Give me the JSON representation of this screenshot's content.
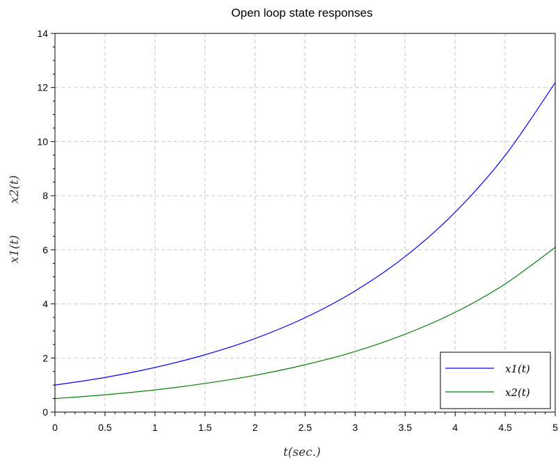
{
  "chart_data": {
    "type": "line",
    "title": "Open loop state responses",
    "xlabel": "t(sec.)",
    "ylabel_parts": [
      "x1(t)",
      "x2(t)"
    ],
    "xlim": [
      0,
      5
    ],
    "ylim": [
      0,
      14
    ],
    "xticks": [
      "0",
      "0.5",
      "1",
      "1.5",
      "2",
      "2.5",
      "3",
      "3.5",
      "4",
      "4.5",
      "5"
    ],
    "yticks": [
      "0",
      "2",
      "4",
      "6",
      "8",
      "10",
      "12",
      "14"
    ],
    "grid": true,
    "legend_position": "bottom-right",
    "x": [
      0,
      0.5,
      1,
      1.5,
      2,
      2.5,
      3,
      3.5,
      4,
      4.5,
      5
    ],
    "series": [
      {
        "name": "x1(t)",
        "color": "#0000ff",
        "values": [
          1.0,
          1.28,
          1.65,
          2.12,
          2.72,
          3.49,
          4.48,
          5.75,
          7.39,
          9.49,
          12.18
        ]
      },
      {
        "name": "x2(t)",
        "color": "#008000",
        "values": [
          0.5,
          0.64,
          0.82,
          1.06,
          1.36,
          1.75,
          2.24,
          2.88,
          3.69,
          4.74,
          6.09
        ]
      }
    ]
  }
}
